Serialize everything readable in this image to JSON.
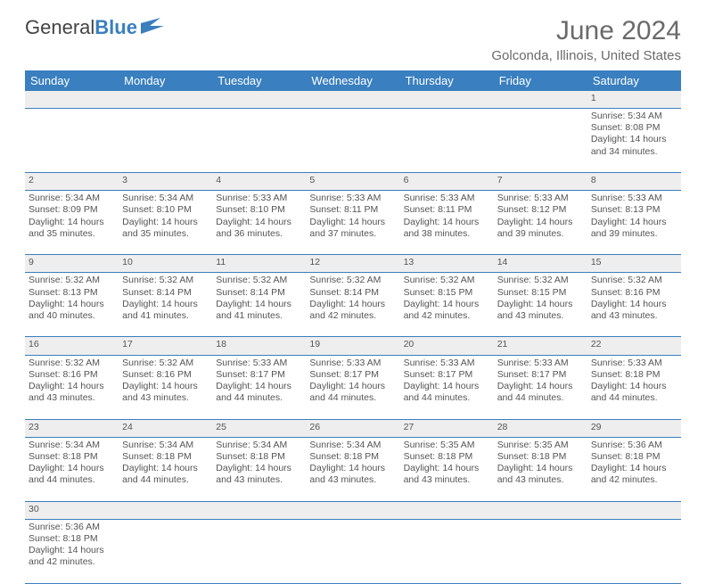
{
  "logo": {
    "text1": "General",
    "text2": "Blue"
  },
  "title": "June 2024",
  "location": "Golconda, Illinois, United States",
  "colors": {
    "header_bg": "#3a7fbf",
    "header_fg": "#ffffff",
    "daynum_bg": "#eeeeee",
    "text": "#555555",
    "title": "#6a6a6a"
  },
  "weekdays": [
    "Sunday",
    "Monday",
    "Tuesday",
    "Wednesday",
    "Thursday",
    "Friday",
    "Saturday"
  ],
  "weeks": [
    [
      null,
      null,
      null,
      null,
      null,
      null,
      {
        "n": "1",
        "sr": "5:34 AM",
        "ss": "8:08 PM",
        "dl": "14 hours and 34 minutes."
      }
    ],
    [
      {
        "n": "2",
        "sr": "5:34 AM",
        "ss": "8:09 PM",
        "dl": "14 hours and 35 minutes."
      },
      {
        "n": "3",
        "sr": "5:34 AM",
        "ss": "8:10 PM",
        "dl": "14 hours and 35 minutes."
      },
      {
        "n": "4",
        "sr": "5:33 AM",
        "ss": "8:10 PM",
        "dl": "14 hours and 36 minutes."
      },
      {
        "n": "5",
        "sr": "5:33 AM",
        "ss": "8:11 PM",
        "dl": "14 hours and 37 minutes."
      },
      {
        "n": "6",
        "sr": "5:33 AM",
        "ss": "8:11 PM",
        "dl": "14 hours and 38 minutes."
      },
      {
        "n": "7",
        "sr": "5:33 AM",
        "ss": "8:12 PM",
        "dl": "14 hours and 39 minutes."
      },
      {
        "n": "8",
        "sr": "5:33 AM",
        "ss": "8:13 PM",
        "dl": "14 hours and 39 minutes."
      }
    ],
    [
      {
        "n": "9",
        "sr": "5:32 AM",
        "ss": "8:13 PM",
        "dl": "14 hours and 40 minutes."
      },
      {
        "n": "10",
        "sr": "5:32 AM",
        "ss": "8:14 PM",
        "dl": "14 hours and 41 minutes."
      },
      {
        "n": "11",
        "sr": "5:32 AM",
        "ss": "8:14 PM",
        "dl": "14 hours and 41 minutes."
      },
      {
        "n": "12",
        "sr": "5:32 AM",
        "ss": "8:14 PM",
        "dl": "14 hours and 42 minutes."
      },
      {
        "n": "13",
        "sr": "5:32 AM",
        "ss": "8:15 PM",
        "dl": "14 hours and 42 minutes."
      },
      {
        "n": "14",
        "sr": "5:32 AM",
        "ss": "8:15 PM",
        "dl": "14 hours and 43 minutes."
      },
      {
        "n": "15",
        "sr": "5:32 AM",
        "ss": "8:16 PM",
        "dl": "14 hours and 43 minutes."
      }
    ],
    [
      {
        "n": "16",
        "sr": "5:32 AM",
        "ss": "8:16 PM",
        "dl": "14 hours and 43 minutes."
      },
      {
        "n": "17",
        "sr": "5:32 AM",
        "ss": "8:16 PM",
        "dl": "14 hours and 43 minutes."
      },
      {
        "n": "18",
        "sr": "5:33 AM",
        "ss": "8:17 PM",
        "dl": "14 hours and 44 minutes."
      },
      {
        "n": "19",
        "sr": "5:33 AM",
        "ss": "8:17 PM",
        "dl": "14 hours and 44 minutes."
      },
      {
        "n": "20",
        "sr": "5:33 AM",
        "ss": "8:17 PM",
        "dl": "14 hours and 44 minutes."
      },
      {
        "n": "21",
        "sr": "5:33 AM",
        "ss": "8:17 PM",
        "dl": "14 hours and 44 minutes."
      },
      {
        "n": "22",
        "sr": "5:33 AM",
        "ss": "8:18 PM",
        "dl": "14 hours and 44 minutes."
      }
    ],
    [
      {
        "n": "23",
        "sr": "5:34 AM",
        "ss": "8:18 PM",
        "dl": "14 hours and 44 minutes."
      },
      {
        "n": "24",
        "sr": "5:34 AM",
        "ss": "8:18 PM",
        "dl": "14 hours and 44 minutes."
      },
      {
        "n": "25",
        "sr": "5:34 AM",
        "ss": "8:18 PM",
        "dl": "14 hours and 43 minutes."
      },
      {
        "n": "26",
        "sr": "5:34 AM",
        "ss": "8:18 PM",
        "dl": "14 hours and 43 minutes."
      },
      {
        "n": "27",
        "sr": "5:35 AM",
        "ss": "8:18 PM",
        "dl": "14 hours and 43 minutes."
      },
      {
        "n": "28",
        "sr": "5:35 AM",
        "ss": "8:18 PM",
        "dl": "14 hours and 43 minutes."
      },
      {
        "n": "29",
        "sr": "5:36 AM",
        "ss": "8:18 PM",
        "dl": "14 hours and 42 minutes."
      }
    ],
    [
      {
        "n": "30",
        "sr": "5:36 AM",
        "ss": "8:18 PM",
        "dl": "14 hours and 42 minutes."
      },
      null,
      null,
      null,
      null,
      null,
      null
    ]
  ],
  "labels": {
    "sunrise": "Sunrise: ",
    "sunset": "Sunset: ",
    "daylight": "Daylight: "
  }
}
